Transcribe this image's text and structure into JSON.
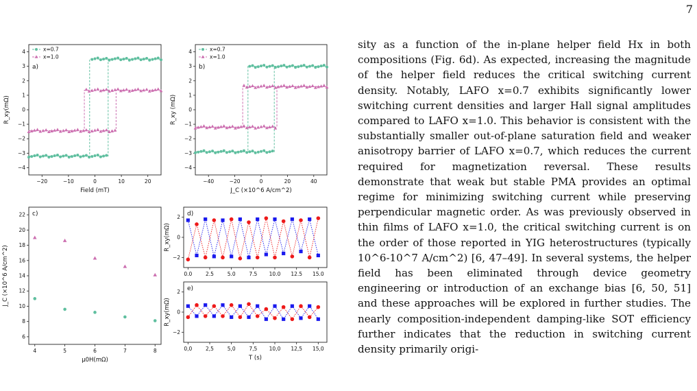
{
  "page_number": "7",
  "body_text": "sity as a function of the in-plane helper field Hx in both compositions (Fig. 6d). As expected, increasing the magnitude of the helper field reduces the critical switching current density. Notably, LAFO x=0.7 exhibits significantly lower switching current densities and larger Hall signal amplitudes compared to LAFO x=1.0. This behavior is consistent with the substantially smaller out-of-plane saturation field and weaker anisotropy barrier of LAFO x=0.7, which reduces the current required for magnetization reversal. These results demonstrate that weak but stable PMA provides an optimal regime for minimizing switching current while preserving perpendicular magnetic order. As was previously observed in thin films of LAFO x=1.0, the critical switching current is on the order of those reported in YIG heterostructures (typically 10^6-10^7 A/cm^2) [6, 47–49]. In several systems, the helper field has been eliminated through device geometry engineering or introduction of an exchange bias [6, 50, 51] and these approaches will be explored in further studies. The nearly composition-independent damping-like SOT efficiency further indicates that the reduction in switching current density primarily origi-",
  "colors": {
    "teal": "#5fbf9f",
    "pink": "#cc6fb0",
    "blue": "#1a1aee",
    "red": "#ee1a1a"
  },
  "chart_data": [
    {
      "panel": "a)",
      "type": "line",
      "xlabel": "Field (mT)",
      "ylabel": "R_xy(mΩ)",
      "xlim": [
        -25,
        25
      ],
      "ylim": [
        -4.5,
        4.5
      ],
      "xticks": [
        "−20",
        "−10",
        "0",
        "10",
        "20"
      ],
      "yticks": [
        "−4",
        "−3",
        "−2",
        "−1",
        "0",
        "1",
        "2",
        "3",
        "4"
      ],
      "legend": "top-left",
      "series": [
        {
          "name": "x=0.7",
          "low": -3.2,
          "high": 3.5,
          "switch_up": 5,
          "switch_down": -2
        },
        {
          "name": "x=1.0",
          "low": -1.45,
          "high": 1.35,
          "switch_up": 8,
          "switch_down": -4
        }
      ]
    },
    {
      "panel": "b)",
      "type": "line",
      "xlabel": "J_C (×10^6 A/cm^2)",
      "ylabel": "R_xy (mΩ)",
      "xlim": [
        -50,
        50
      ],
      "ylim": [
        -4.5,
        4.5
      ],
      "xticks": [
        "−40",
        "−20",
        "0",
        "20",
        "40"
      ],
      "yticks": [
        "−4",
        "−3",
        "−2",
        "−1",
        "0",
        "1",
        "2",
        "3",
        "4"
      ],
      "legend": "top-left",
      "series": [
        {
          "name": "x=0.7",
          "low": -2.9,
          "high": 3.0,
          "switch_up": 10,
          "switch_down": -10
        },
        {
          "name": "x=1.0",
          "low": -1.2,
          "high": 1.6,
          "switch_up": 12,
          "switch_down": -14
        }
      ]
    },
    {
      "panel": "c)",
      "type": "scatter",
      "xlabel": "μ0H(mΩ)",
      "ylabel": "J_C (×10^6 A/cm^2)",
      "xlim": [
        3.8,
        8.2
      ],
      "ylim": [
        5,
        23
      ],
      "xticks": [
        "4",
        "5",
        "6",
        "7",
        "8"
      ],
      "yticks": [
        "6",
        "8",
        "10",
        "12",
        "14",
        "16",
        "18",
        "20",
        "22"
      ],
      "x": [
        4,
        5,
        6,
        7,
        8
      ],
      "series": [
        {
          "values": [
            19.0,
            18.6,
            16.3,
            15.2,
            14.1
          ]
        },
        {
          "values": [
            11.0,
            9.6,
            9.2,
            8.6,
            8.1
          ]
        }
      ]
    },
    {
      "panel": "d)",
      "type": "line",
      "xlabel": "",
      "ylabel": "R_xy(mΩ)",
      "xlim": [
        -0.5,
        16
      ],
      "ylim": [
        -3,
        3
      ],
      "xticks": [
        "0.0",
        "2.5",
        "5.0",
        "7.5",
        "10.0",
        "12.5",
        "15.0"
      ],
      "yticks": [
        "−2",
        "0",
        "2"
      ],
      "x": [
        0,
        1,
        2,
        3,
        4,
        5,
        6,
        7,
        8,
        9,
        10,
        11,
        12,
        13,
        14,
        15
      ],
      "series": [
        {
          "values": [
            1.7,
            -1.8,
            1.8,
            -1.9,
            1.7,
            -1.9,
            1.8,
            -2.0,
            1.8,
            -1.7,
            1.8,
            -1.6,
            1.8,
            -1.4,
            1.8,
            -1.8
          ]
        },
        {
          "values": [
            -2.2,
            1.3,
            -2.0,
            1.7,
            -2.0,
            1.8,
            -2.1,
            1.5,
            -2.0,
            1.9,
            -2.0,
            1.6,
            -1.9,
            1.7,
            -2.0,
            1.9
          ]
        }
      ]
    },
    {
      "panel": "e)",
      "type": "line",
      "xlabel": "T (s)",
      "ylabel": "R_xy(mΩ)",
      "xlim": [
        -0.5,
        16
      ],
      "ylim": [
        -3,
        3
      ],
      "xticks": [
        "0,0",
        "2,5",
        "5,0",
        "7,5",
        "10,0",
        "12,5",
        "15,0"
      ],
      "yticks": [
        "−2",
        "0",
        "2"
      ],
      "x": [
        0,
        1,
        2,
        3,
        4,
        5,
        6,
        7,
        8,
        9,
        10,
        11,
        12,
        13,
        14,
        15
      ],
      "series": [
        {
          "values": [
            0.6,
            -0.4,
            0.7,
            -0.4,
            0.7,
            -0.5,
            0.6,
            -0.5,
            0.6,
            -0.7,
            0.6,
            -0.7,
            0.6,
            -0.6,
            0.6,
            -0.7
          ]
        },
        {
          "values": [
            -0.5,
            0.7,
            -0.4,
            0.6,
            -0.4,
            0.7,
            -0.5,
            0.8,
            -0.4,
            0.3,
            -0.6,
            0.5,
            -0.7,
            0.6,
            -0.5,
            0.5
          ]
        }
      ]
    }
  ]
}
